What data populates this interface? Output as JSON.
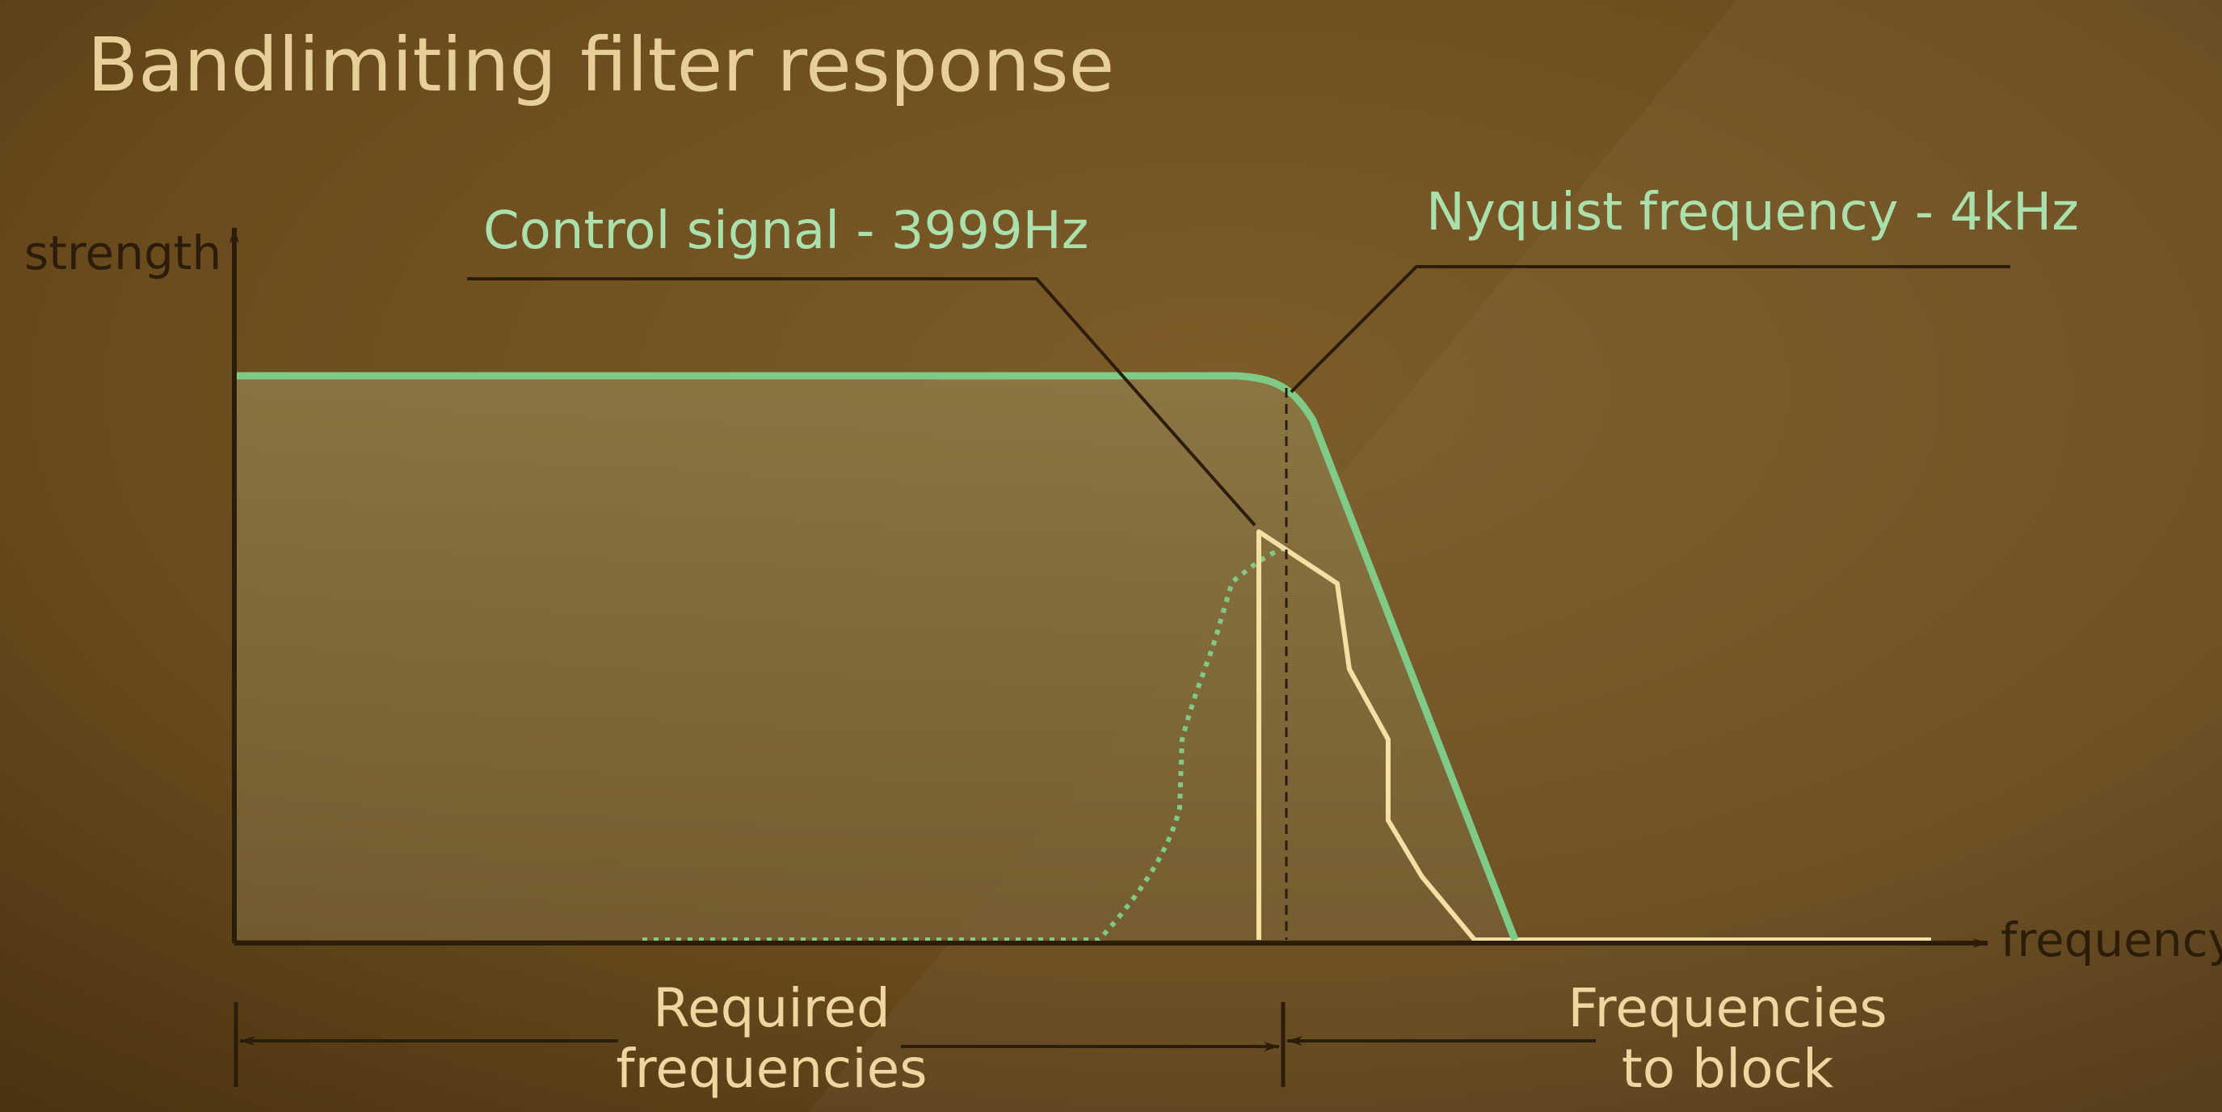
{
  "title": "Bandlimiting filter response",
  "axes": {
    "y_label": "strength",
    "x_label": "frequency"
  },
  "annotations": {
    "control_signal": "Control signal - 3999Hz",
    "nyquist": "Nyquist frequency - 4kHz"
  },
  "regions": {
    "required": [
      "Required",
      "frequencies"
    ],
    "block": [
      "Frequencies",
      "to block"
    ]
  },
  "colors": {
    "background_dark": "#4f3812",
    "background_light": "#7a5a28",
    "filter_fill": "#8a7543",
    "filter_line": "#7fca86",
    "signal_line": "#f6dfa3",
    "axis": "#2b1d09",
    "title_text": "#e6cf98",
    "annotation_text": "#a9e0ac",
    "region_text": "#edd6a0",
    "axis_text": "#2b1d09"
  }
}
